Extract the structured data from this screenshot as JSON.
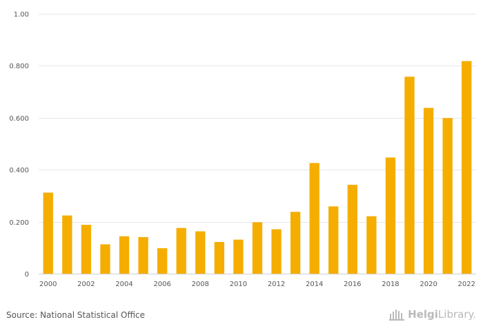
{
  "chart_data": {
    "type": "bar",
    "categories": [
      "2000",
      "2001",
      "2002",
      "2003",
      "2004",
      "2005",
      "2006",
      "2007",
      "2008",
      "2009",
      "2010",
      "2011",
      "2012",
      "2013",
      "2014",
      "2015",
      "2016",
      "2017",
      "2018",
      "2019",
      "2020",
      "2021",
      "2022"
    ],
    "values": [
      0.312,
      0.224,
      0.188,
      0.113,
      0.144,
      0.141,
      0.098,
      0.176,
      0.163,
      0.122,
      0.131,
      0.198,
      0.171,
      0.238,
      0.426,
      0.259,
      0.342,
      0.221,
      0.447,
      0.758,
      0.638,
      0.599,
      0.818
    ],
    "xticks": [
      "2000",
      "2002",
      "2004",
      "2006",
      "2008",
      "2010",
      "2012",
      "2014",
      "2016",
      "2018",
      "2020",
      "2022"
    ],
    "yticks": [
      {
        "value": 0,
        "label": "0"
      },
      {
        "value": 0.2,
        "label": "0.200"
      },
      {
        "value": 0.4,
        "label": "0.400"
      },
      {
        "value": 0.6,
        "label": "0.600"
      },
      {
        "value": 0.8,
        "label": "0.800"
      },
      {
        "value": 1.0,
        "label": "1.00"
      }
    ],
    "ylim": [
      0,
      1.0
    ],
    "bar_color": "#f5ad00",
    "grid": true
  },
  "footer": {
    "source": "Source: National Statistical Office",
    "brand_bold": "Helgi",
    "brand_regular": "Library."
  },
  "colors": {
    "brand": "#b9b9b9"
  },
  "icons": {
    "brand_logo": "helgilibrary-logo-icon"
  }
}
